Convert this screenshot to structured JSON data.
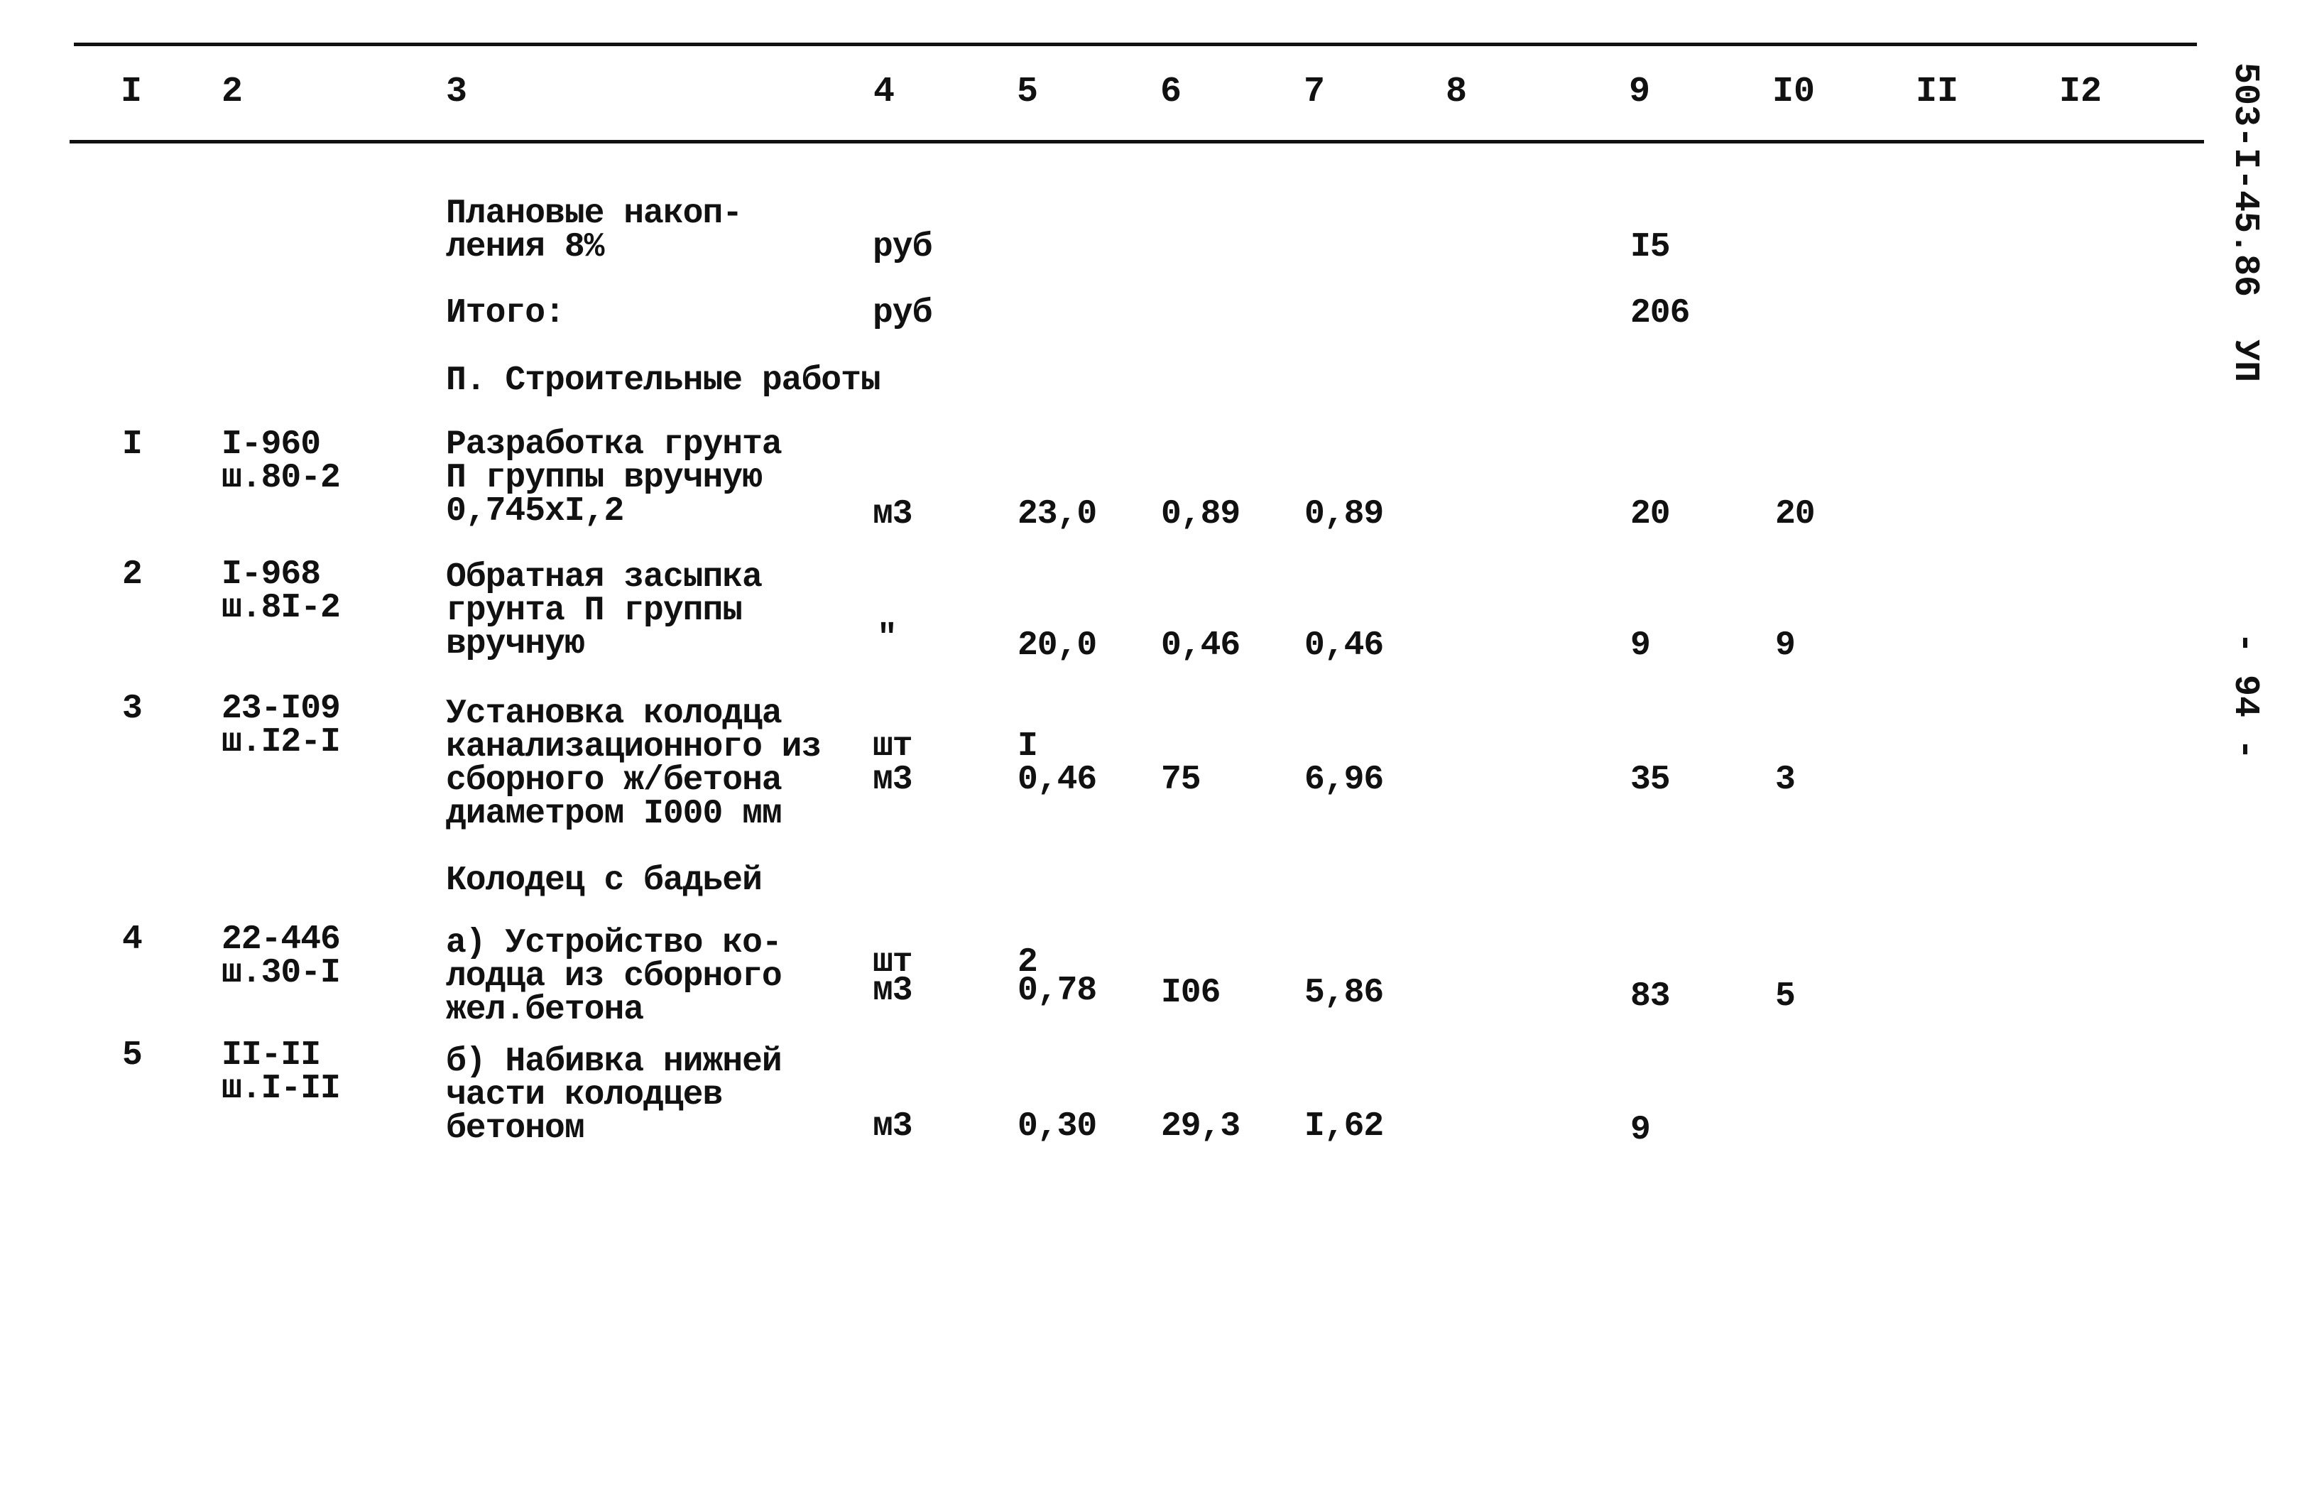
{
  "header": {
    "columns": [
      "I",
      "2",
      "3",
      "4",
      "5",
      "6",
      "7",
      "8",
      "9",
      "I0",
      "II",
      "I2"
    ]
  },
  "side": {
    "doc_code": "503-I-45.86",
    "album": "УП",
    "page": "- 94 -"
  },
  "summary": [
    {
      "label": "Плановые накоп-\nления 8%",
      "unit": "руб",
      "col9": "I5"
    },
    {
      "label": "Итого:",
      "unit": "руб",
      "col9": "206"
    }
  ],
  "section_title": "П. Строительные работы",
  "subsection_title": "Колодец с бадьей",
  "rows": [
    {
      "num": "I",
      "code": "I-960\nш.80-2",
      "name": "Разработка грунта\nП группы вручную\n0,745xI,2",
      "unit": "м3",
      "c5": "23,0",
      "c6": "0,89",
      "c7": "0,89",
      "c9": "20",
      "c10": "20"
    },
    {
      "num": "2",
      "code": "I-968\nш.8I-2",
      "name": "Обратная засыпка\nгрунта П группы\nвручную",
      "unit": "\"",
      "c5": "20,0",
      "c6": "0,46",
      "c7": "0,46",
      "c9": "9",
      "c10": "9"
    },
    {
      "num": "3",
      "code": "23-I09\nш.I2-I",
      "name": "Установка колодца\nканализационного из\nсборного ж/бетона\nдиаметром I000 мм",
      "unit": "шт\nм3",
      "c5": "I\n0,46",
      "c6": "75",
      "c7": "6,96",
      "c9": "35",
      "c10": "3"
    },
    {
      "num": "4",
      "code": "22-446\nш.30-I",
      "name": "а) Устройство ко-\nлодца из сборного\nжел.бетона",
      "unit": "шт\nм3",
      "c5": "2\n0,78",
      "c6": "I06",
      "c7": "5,86",
      "c9": "83",
      "c10": "5"
    },
    {
      "num": "5",
      "code": "II-II\nш.I-II",
      "name": "б) Набивка нижней\nчасти колодцев\nбетоном",
      "unit": "м3",
      "c5": "0,30",
      "c6": "29,3",
      "c7": "I,62",
      "c9": "9",
      "c10": ""
    }
  ]
}
